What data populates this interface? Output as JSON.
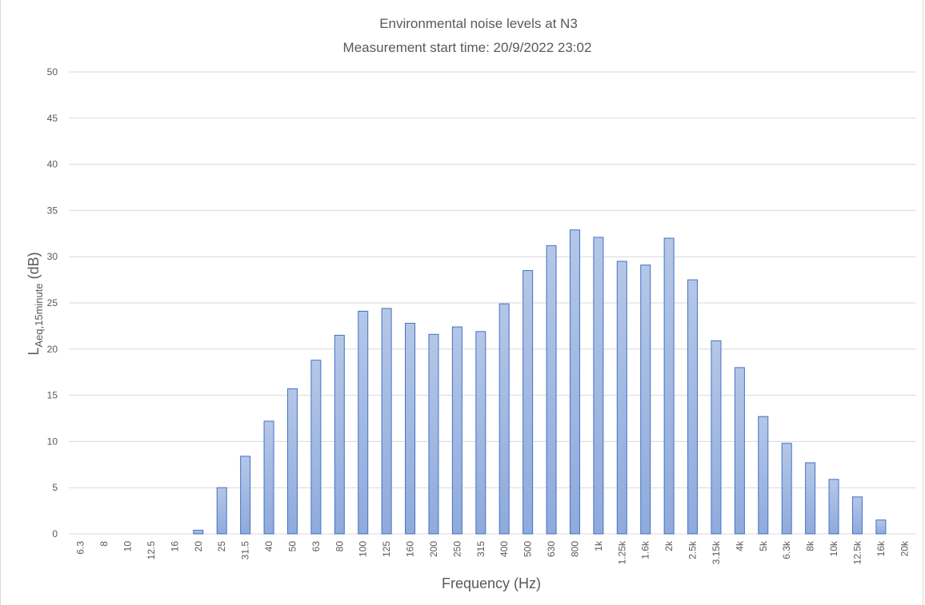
{
  "chart_data": {
    "type": "bar",
    "title": "Environmental  noise levels at N3",
    "subtitle": "Measurement  start time: 20/9/2022 23:02",
    "xlabel": "Frequency (Hz)",
    "ylabel_main": "L",
    "ylabel_sub": "Aeq,15minute",
    "ylabel_unit": " (dB)",
    "ylim": [
      0,
      50
    ],
    "yticks": [
      "0",
      "5",
      "10",
      "15",
      "20",
      "25",
      "30",
      "35",
      "40",
      "45",
      "50"
    ],
    "grid": true,
    "legend": "none",
    "categories": [
      "6.3",
      "8",
      "10",
      "12.5",
      "16",
      "20",
      "25",
      "31.5",
      "40",
      "50",
      "63",
      "80",
      "100",
      "125",
      "160",
      "200",
      "250",
      "315",
      "400",
      "500",
      "630",
      "800",
      "1k",
      "1.25k",
      "1.6k",
      "2k",
      "2.5k",
      "3.15k",
      "4k",
      "5k",
      "6.3k",
      "8k",
      "10k",
      "12.5k",
      "16k",
      "20k"
    ],
    "values": [
      0,
      0,
      0,
      0,
      0,
      0.4,
      5.0,
      8.4,
      12.2,
      15.7,
      18.8,
      21.5,
      24.1,
      24.4,
      22.8,
      21.6,
      22.4,
      21.9,
      24.9,
      28.5,
      31.2,
      32.9,
      32.1,
      29.5,
      29.1,
      32.0,
      27.5,
      20.9,
      18.0,
      12.7,
      9.8,
      7.7,
      5.9,
      4.0,
      1.5,
      0
    ],
    "colors": {
      "bar_fill_top": "#b4c7e7",
      "bar_fill_bottom": "#8faadc",
      "bar_stroke": "#4472c4",
      "grid": "#d9d9d9",
      "text": "#595959"
    }
  }
}
